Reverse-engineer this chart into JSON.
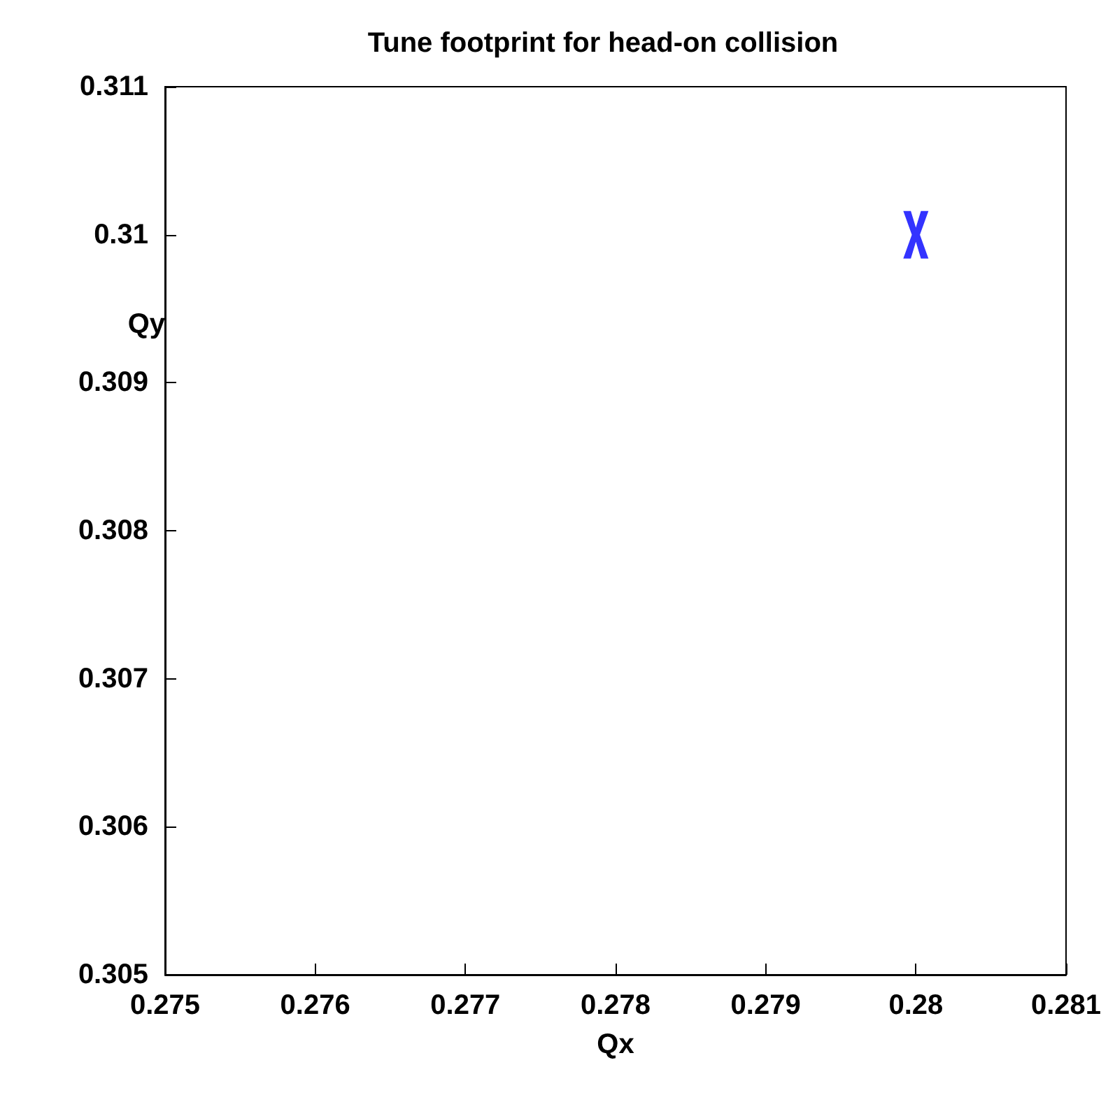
{
  "chart_data": {
    "type": "scatter",
    "title": "Tune footprint for head-on collision",
    "xlabel": "Qx",
    "ylabel": "Qy",
    "series": [
      {
        "color": "#0000ff",
        "x": [
          0.28
        ],
        "values": [
          0.31
        ]
      }
    ],
    "marker": "cross",
    "grid": false,
    "xlim": [
      0.275,
      0.281
    ],
    "xticks": [
      0.275,
      0.276,
      0.277,
      0.278,
      0.279,
      0.28,
      0.281
    ],
    "ylim": [
      0.305,
      0.311
    ],
    "yticks": [
      0.305,
      0.306,
      0.307,
      0.308,
      0.309,
      0.31,
      0.311
    ]
  }
}
